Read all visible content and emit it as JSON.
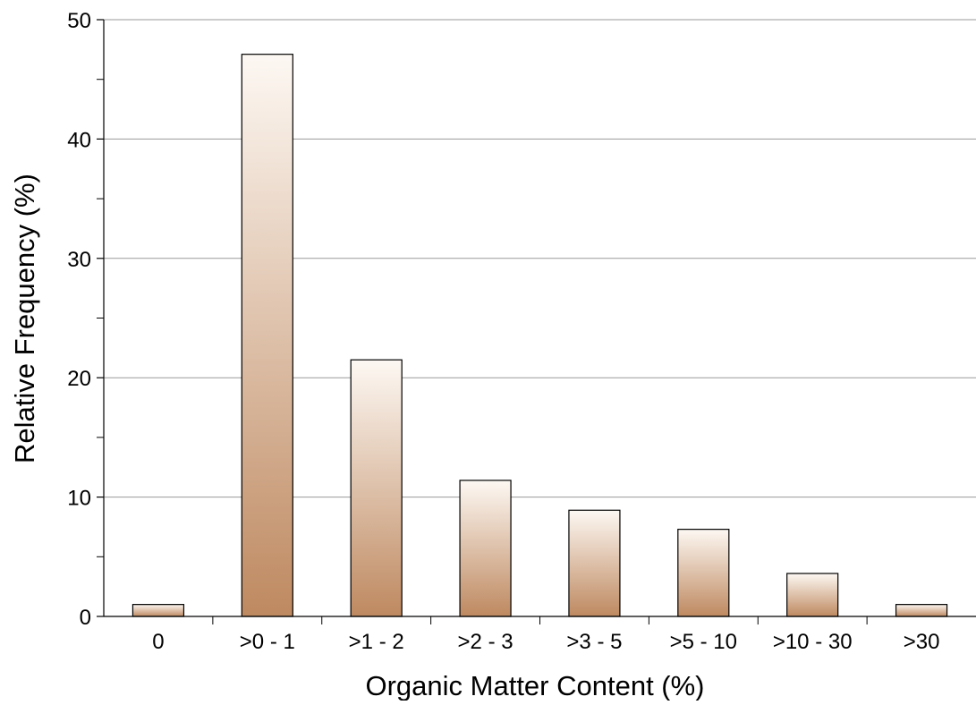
{
  "chart_data": {
    "type": "bar",
    "title": "",
    "xlabel": "Organic Matter Content (%)",
    "ylabel": "Relative Frequency (%)",
    "categories": [
      "0",
      ">0 - 1",
      ">1 - 2",
      ">2 - 3",
      ">3 - 5",
      ">5 - 10",
      ">10 - 30",
      ">30"
    ],
    "values": [
      1.0,
      47.1,
      21.5,
      11.4,
      8.9,
      7.3,
      3.6,
      1.0
    ],
    "ylim": [
      0,
      50
    ],
    "yticks": [
      0,
      10,
      20,
      30,
      40,
      50
    ],
    "grid": true,
    "bar_gradient": {
      "top": "#fdf8f3",
      "bottom": "#be8960"
    },
    "bar_outline": "#000000",
    "grid_color": "#9a9a9a"
  }
}
